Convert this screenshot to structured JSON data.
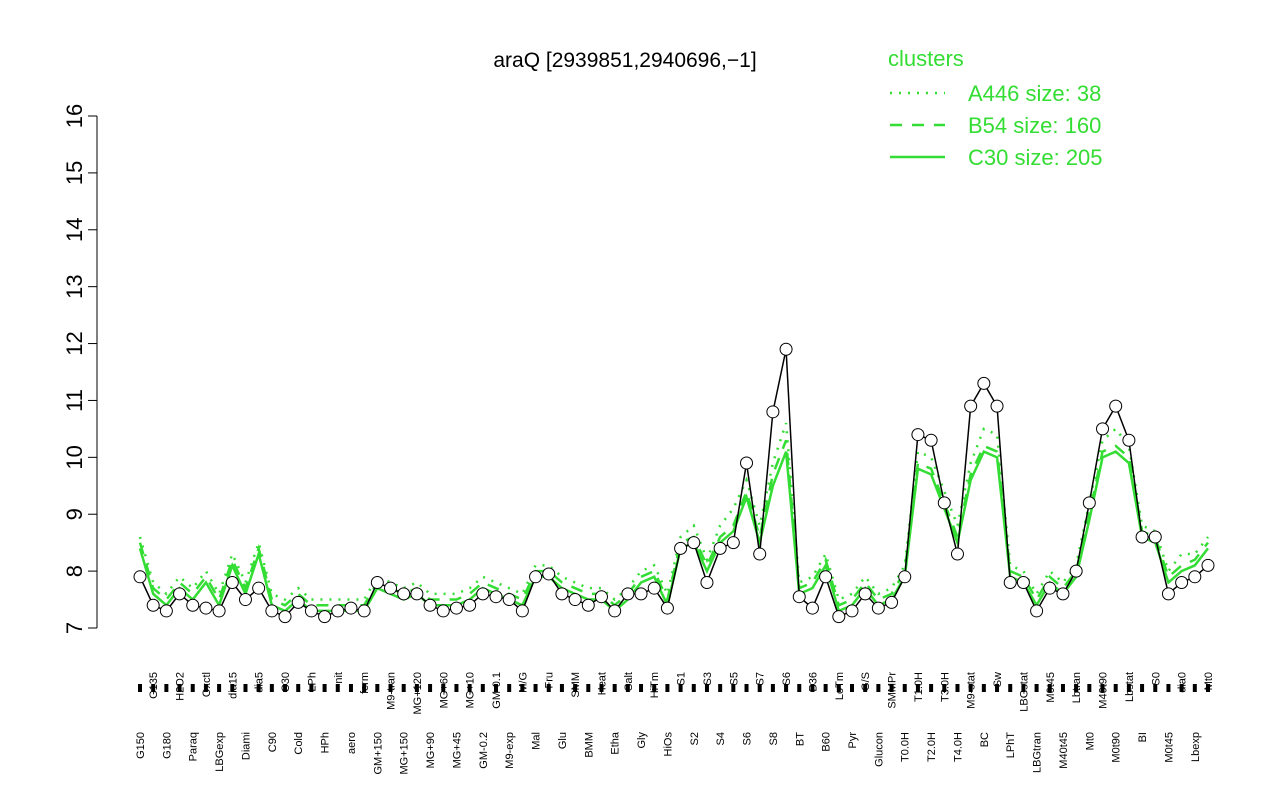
{
  "chart_data": {
    "type": "line",
    "title": "araQ [2939851,2940696,−1]",
    "legend_title": "clusters",
    "categories": [
      "G150",
      "G135",
      "G180",
      "H2O2",
      "Paraq",
      "Oxctl",
      "LBGexp",
      "dia15",
      "Diami",
      "dia5",
      "C90",
      "C30",
      "Cold",
      "LPh",
      "HPh",
      "nit",
      "aero",
      "ferm",
      "GM+150",
      "M9-tran",
      "MG+150",
      "MG+120",
      "MG+90",
      "MG+60",
      "MG+45",
      "MG+10",
      "GM-0.2",
      "GM-0.1",
      "M9-exp",
      "M/G",
      "Mal",
      "Fru",
      "Glu",
      "SMM",
      "BMM",
      "Heat",
      "Etha",
      "Salt",
      "Gly",
      "HiTm",
      "HiOs",
      "S1",
      "S2",
      "S3",
      "S4",
      "S5",
      "S6",
      "S7",
      "S8",
      "S6",
      "BT",
      "B36",
      "B60",
      "LoTm",
      "Pyr",
      "G/S",
      "Glucon",
      "SMMPr",
      "T0.0H",
      "T1.0H",
      "T2.0H",
      "T3.0H",
      "T4.0H",
      "M9-stat",
      "BC",
      "Sw",
      "LPhT",
      "LBGstat",
      "LBGtran",
      "M0t45",
      "M40t45",
      "Lbtran",
      "Mt0",
      "M40t90",
      "M0t90",
      "Lbstat",
      "BI",
      "S0",
      "M0t45",
      "dia0",
      "Lbexp",
      "Mt0"
    ],
    "values": [
      7.9,
      7.4,
      7.3,
      7.6,
      7.4,
      7.35,
      7.3,
      7.8,
      7.5,
      7.7,
      7.3,
      7.2,
      7.45,
      7.3,
      7.2,
      7.3,
      7.35,
      7.3,
      7.8,
      7.7,
      7.6,
      7.6,
      7.4,
      7.3,
      7.35,
      7.4,
      7.6,
      7.55,
      7.5,
      7.3,
      7.9,
      7.95,
      7.6,
      7.5,
      7.4,
      7.55,
      7.3,
      7.6,
      7.6,
      7.7,
      7.35,
      8.4,
      8.5,
      7.8,
      8.4,
      8.5,
      9.9,
      8.3,
      10.8,
      11.9,
      7.55,
      7.35,
      7.9,
      7.2,
      7.3,
      7.6,
      7.35,
      7.45,
      7.9,
      10.4,
      10.3,
      9.2,
      8.3,
      10.9,
      11.3,
      10.9,
      7.8,
      7.8,
      7.3,
      7.7,
      7.6,
      8.0,
      9.2,
      10.5,
      10.9,
      10.3,
      8.6,
      8.6,
      7.6,
      7.8,
      7.9,
      8.1
    ],
    "series": [
      {
        "name": "A446 size: 38",
        "color": "#33dd33",
        "style": "dotted",
        "values": [
          8.6,
          7.8,
          7.6,
          7.9,
          7.7,
          8.0,
          7.6,
          8.3,
          7.8,
          8.5,
          7.6,
          7.5,
          7.7,
          7.5,
          7.5,
          7.5,
          7.5,
          7.5,
          7.9,
          7.8,
          7.7,
          7.8,
          7.6,
          7.6,
          7.6,
          7.7,
          7.9,
          7.8,
          7.7,
          7.6,
          8.1,
          8.1,
          7.9,
          7.8,
          7.7,
          7.7,
          7.5,
          7.7,
          8.0,
          8.1,
          7.6,
          8.6,
          8.8,
          8.2,
          8.8,
          9.1,
          9.6,
          8.8,
          9.9,
          10.6,
          7.8,
          7.9,
          8.3,
          7.5,
          7.6,
          7.9,
          7.6,
          7.7,
          8.1,
          10.1,
          10.0,
          9.4,
          8.8,
          9.9,
          10.5,
          10.4,
          8.1,
          8.0,
          7.6,
          8.0,
          7.8,
          8.1,
          9.2,
          10.3,
          10.5,
          10.2,
          8.8,
          8.7,
          8.0,
          8.3,
          8.3,
          8.6
        ]
      },
      {
        "name": "B54 size: 160",
        "color": "#33dd33",
        "style": "dashed",
        "values": [
          8.5,
          7.7,
          7.5,
          7.8,
          7.6,
          7.9,
          7.5,
          8.2,
          7.7,
          8.4,
          7.5,
          7.4,
          7.6,
          7.4,
          7.4,
          7.4,
          7.4,
          7.4,
          7.8,
          7.7,
          7.6,
          7.7,
          7.5,
          7.5,
          7.5,
          7.6,
          7.8,
          7.7,
          7.6,
          7.5,
          8.0,
          8.0,
          7.8,
          7.7,
          7.6,
          7.6,
          7.4,
          7.6,
          7.9,
          8.0,
          7.5,
          8.5,
          8.6,
          8.1,
          8.6,
          8.8,
          9.4,
          8.6,
          9.7,
          10.3,
          7.7,
          7.8,
          8.2,
          7.4,
          7.5,
          7.8,
          7.5,
          7.6,
          8.0,
          9.9,
          9.8,
          9.2,
          8.6,
          9.7,
          10.2,
          10.1,
          8.0,
          7.9,
          7.5,
          7.9,
          7.7,
          8.0,
          9.0,
          10.1,
          10.2,
          10.0,
          8.7,
          8.6,
          7.9,
          8.1,
          8.2,
          8.5
        ]
      },
      {
        "name": "C30 size: 205",
        "color": "#33dd33",
        "style": "solid",
        "values": [
          8.4,
          7.6,
          7.4,
          7.7,
          7.5,
          7.8,
          7.4,
          8.1,
          7.6,
          8.3,
          7.4,
          7.3,
          7.5,
          7.3,
          7.3,
          7.3,
          7.3,
          7.3,
          7.7,
          7.6,
          7.5,
          7.6,
          7.4,
          7.4,
          7.4,
          7.5,
          7.7,
          7.6,
          7.5,
          7.4,
          7.9,
          7.9,
          7.7,
          7.6,
          7.5,
          7.5,
          7.3,
          7.5,
          7.8,
          7.9,
          7.4,
          8.4,
          8.5,
          8.0,
          8.5,
          8.7,
          9.3,
          8.5,
          9.5,
          10.1,
          7.6,
          7.7,
          8.1,
          7.3,
          7.4,
          7.7,
          7.4,
          7.5,
          7.9,
          9.8,
          9.7,
          9.1,
          8.5,
          9.6,
          10.1,
          10.0,
          7.9,
          7.8,
          7.4,
          7.8,
          7.6,
          7.9,
          8.9,
          10.0,
          10.1,
          9.9,
          8.6,
          8.5,
          7.8,
          8.0,
          8.1,
          8.4
        ]
      }
    ],
    "ylim": [
      7,
      16
    ],
    "yticks": [
      7,
      8,
      9,
      10,
      11,
      12,
      13,
      14,
      15,
      16
    ]
  }
}
